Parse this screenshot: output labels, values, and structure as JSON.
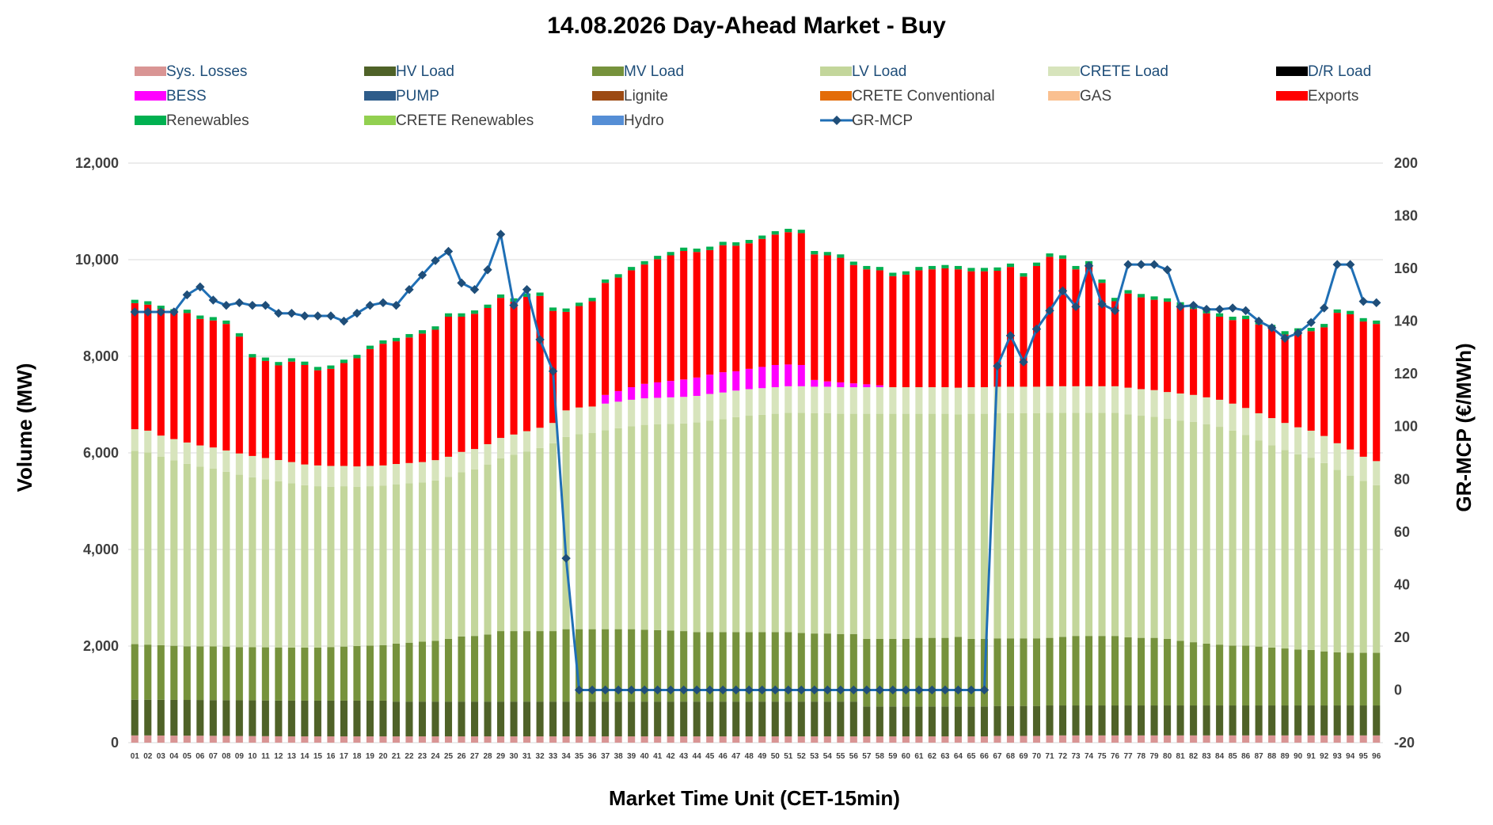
{
  "chart_data": {
    "type": "bar",
    "stacked": true,
    "title": "14.08.2026  Day-Ahead Market - Buy",
    "xlabel": "Market Time Unit (CET-15min)",
    "ylabel": "Volume (MW)",
    "y2label": "GR-MCP (€/MWh)",
    "ylim": [
      0,
      12000
    ],
    "y2lim": [
      -20,
      200
    ],
    "yticks": [
      "0",
      "2,000",
      "4,000",
      "6,000",
      "8,000",
      "10,000",
      "12,000"
    ],
    "y2ticks": [
      "-20",
      "0",
      "20",
      "40",
      "60",
      "80",
      "100",
      "120",
      "140",
      "160",
      "180",
      "200"
    ],
    "grid": true,
    "legend_position": "top",
    "categories": [
      "01",
      "02",
      "03",
      "04",
      "05",
      "06",
      "07",
      "08",
      "09",
      "10",
      "11",
      "12",
      "13",
      "14",
      "15",
      "16",
      "17",
      "18",
      "19",
      "20",
      "21",
      "22",
      "23",
      "24",
      "25",
      "26",
      "27",
      "28",
      "29",
      "30",
      "31",
      "32",
      "33",
      "34",
      "35",
      "36",
      "37",
      "38",
      "39",
      "40",
      "41",
      "42",
      "43",
      "44",
      "45",
      "46",
      "47",
      "48",
      "49",
      "50",
      "51",
      "52",
      "53",
      "54",
      "55",
      "56",
      "57",
      "58",
      "59",
      "60",
      "61",
      "62",
      "63",
      "64",
      "65",
      "66",
      "67",
      "68",
      "69",
      "70",
      "71",
      "72",
      "73",
      "74",
      "75",
      "76",
      "77",
      "78",
      "79",
      "80",
      "81",
      "82",
      "83",
      "84",
      "85",
      "86",
      "87",
      "88",
      "89",
      "90",
      "91",
      "92",
      "93",
      "94",
      "95",
      "96"
    ],
    "legend": [
      {
        "name": "Sys. Losses",
        "color": "#d99594",
        "kind": "bar"
      },
      {
        "name": "HV Load",
        "color": "#4f6228",
        "kind": "bar"
      },
      {
        "name": "MV Load",
        "color": "#76923c",
        "kind": "bar"
      },
      {
        "name": "LV Load",
        "color": "#c3d69b",
        "kind": "bar"
      },
      {
        "name": "CRETE Load",
        "color": "#d7e4bc",
        "kind": "bar"
      },
      {
        "name": "D/R Load",
        "color": "#000000",
        "kind": "bar"
      },
      {
        "name": "BESS",
        "color": "#ff00ff",
        "kind": "bar"
      },
      {
        "name": "PUMP",
        "color": "#2e5c8a",
        "kind": "bar"
      },
      {
        "name": "Lignite",
        "color": "#9c4a13",
        "kind": "bar"
      },
      {
        "name": "CRETE Conventional",
        "color": "#e36c09",
        "kind": "bar"
      },
      {
        "name": "GAS",
        "color": "#fac090",
        "kind": "bar"
      },
      {
        "name": "Exports",
        "color": "#ff0000",
        "kind": "bar"
      },
      {
        "name": "Renewables",
        "color": "#00b050",
        "kind": "bar"
      },
      {
        "name": "CRETE Renewables",
        "color": "#92d050",
        "kind": "bar"
      },
      {
        "name": "Hydro",
        "color": "#558ed5",
        "kind": "bar"
      },
      {
        "name": "GR-MCP",
        "color": "#1f6fb5",
        "kind": "line"
      }
    ],
    "series": [
      {
        "name": "Sys. Losses",
        "axis": "y",
        "values": [
          150,
          150,
          148,
          146,
          145,
          144,
          142,
          140,
          138,
          136,
          134,
          132,
          130,
          130,
          130,
          130,
          130,
          130,
          130,
          130,
          130,
          130,
          130,
          130,
          130,
          130,
          130,
          130,
          130,
          130,
          130,
          130,
          130,
          130,
          130,
          130,
          130,
          130,
          130,
          130,
          130,
          130,
          130,
          130,
          130,
          130,
          130,
          130,
          130,
          130,
          130,
          130,
          130,
          130,
          130,
          130,
          130,
          130,
          130,
          130,
          130,
          130,
          130,
          130,
          130,
          130,
          140,
          140,
          140,
          140,
          150,
          150,
          150,
          150,
          150,
          150,
          150,
          150,
          150,
          150,
          150,
          150,
          150,
          150,
          150,
          150,
          150,
          150,
          150,
          150,
          150,
          150,
          150,
          150,
          150,
          150
        ]
      },
      {
        "name": "HV Load",
        "axis": "y",
        "values": [
          740,
          740,
          740,
          740,
          740,
          740,
          740,
          740,
          740,
          740,
          740,
          740,
          740,
          740,
          740,
          740,
          740,
          740,
          740,
          740,
          720,
          720,
          720,
          720,
          720,
          720,
          720,
          720,
          720,
          720,
          720,
          720,
          720,
          720,
          720,
          720,
          720,
          720,
          720,
          720,
          720,
          720,
          720,
          720,
          720,
          720,
          720,
          720,
          720,
          720,
          720,
          720,
          720,
          720,
          720,
          720,
          620,
          620,
          620,
          620,
          620,
          620,
          620,
          620,
          620,
          620,
          620,
          620,
          620,
          620,
          620,
          620,
          620,
          620,
          620,
          620,
          620,
          620,
          620,
          620,
          620,
          620,
          620,
          620,
          620,
          620,
          620,
          620,
          620,
          620,
          620,
          620,
          620,
          620,
          620,
          620
        ]
      },
      {
        "name": "MV Load",
        "axis": "y",
        "values": [
          1150,
          1140,
          1130,
          1120,
          1110,
          1110,
          1110,
          1110,
          1100,
          1100,
          1100,
          1100,
          1100,
          1100,
          1100,
          1110,
          1120,
          1130,
          1140,
          1150,
          1200,
          1220,
          1240,
          1260,
          1300,
          1350,
          1360,
          1390,
          1460,
          1460,
          1460,
          1460,
          1460,
          1500,
          1500,
          1500,
          1500,
          1500,
          1500,
          1490,
          1480,
          1470,
          1460,
          1440,
          1440,
          1440,
          1440,
          1440,
          1440,
          1440,
          1440,
          1420,
          1410,
          1410,
          1400,
          1400,
          1400,
          1400,
          1400,
          1400,
          1420,
          1420,
          1420,
          1440,
          1400,
          1400,
          1400,
          1400,
          1400,
          1400,
          1400,
          1420,
          1440,
          1440,
          1440,
          1440,
          1410,
          1400,
          1400,
          1380,
          1340,
          1310,
          1280,
          1260,
          1240,
          1240,
          1220,
          1200,
          1180,
          1160,
          1150,
          1120,
          1100,
          1090,
          1090,
          1090
        ]
      },
      {
        "name": "LV Load",
        "axis": "y",
        "values": [
          4000,
          3980,
          3900,
          3840,
          3780,
          3720,
          3680,
          3620,
          3570,
          3520,
          3480,
          3440,
          3400,
          3360,
          3340,
          3320,
          3320,
          3300,
          3300,
          3300,
          3300,
          3300,
          3300,
          3320,
          3350,
          3400,
          3450,
          3520,
          3580,
          3650,
          3720,
          3790,
          3890,
          3980,
          4040,
          4060,
          4120,
          4160,
          4200,
          4240,
          4260,
          4280,
          4300,
          4340,
          4380,
          4410,
          4450,
          4480,
          4500,
          4520,
          4540,
          4560,
          4560,
          4560,
          4560,
          4560,
          4660,
          4660,
          4660,
          4660,
          4640,
          4640,
          4640,
          4610,
          4660,
          4660,
          4660,
          4660,
          4660,
          4660,
          4660,
          4640,
          4620,
          4620,
          4620,
          4620,
          4620,
          4600,
          4580,
          4560,
          4560,
          4560,
          4540,
          4510,
          4450,
          4360,
          4270,
          4190,
          4110,
          4040,
          3980,
          3900,
          3780,
          3670,
          3560,
          3470
        ]
      },
      {
        "name": "CRETE Load",
        "axis": "y",
        "values": [
          450,
          450,
          440,
          440,
          440,
          440,
          440,
          440,
          440,
          440,
          440,
          440,
          440,
          430,
          430,
          430,
          420,
          420,
          420,
          420,
          420,
          420,
          420,
          420,
          420,
          420,
          420,
          420,
          420,
          420,
          420,
          420,
          420,
          550,
          550,
          550,
          550,
          550,
          550,
          550,
          550,
          550,
          550,
          550,
          550,
          550,
          550,
          550,
          550,
          550,
          550,
          550,
          550,
          550,
          550,
          550,
          550,
          550,
          550,
          550,
          550,
          550,
          550,
          550,
          550,
          550,
          550,
          550,
          550,
          550,
          550,
          550,
          550,
          550,
          550,
          550,
          550,
          550,
          550,
          550,
          560,
          560,
          560,
          560,
          560,
          560,
          560,
          560,
          560,
          560,
          560,
          560,
          550,
          540,
          500,
          500
        ]
      },
      {
        "name": "D/R Load",
        "axis": "y",
        "values": [
          0,
          0,
          0,
          0,
          0,
          0,
          0,
          0,
          0,
          0,
          0,
          0,
          0,
          0,
          0,
          0,
          0,
          0,
          0,
          0,
          0,
          0,
          0,
          0,
          0,
          0,
          0,
          0,
          0,
          0,
          0,
          0,
          0,
          0,
          0,
          0,
          0,
          0,
          0,
          0,
          0,
          0,
          0,
          0,
          0,
          0,
          0,
          0,
          0,
          0,
          0,
          0,
          0,
          0,
          0,
          0,
          0,
          0,
          0,
          0,
          0,
          0,
          0,
          0,
          0,
          0,
          0,
          0,
          0,
          0,
          0,
          0,
          0,
          0,
          0,
          0,
          0,
          0,
          0,
          0,
          0,
          0,
          0,
          0,
          0,
          0,
          0,
          0,
          0,
          0,
          0,
          0,
          0,
          0,
          0,
          0
        ]
      },
      {
        "name": "BESS",
        "axis": "y",
        "values": [
          0,
          0,
          0,
          0,
          0,
          0,
          0,
          0,
          0,
          0,
          0,
          0,
          0,
          0,
          0,
          0,
          0,
          0,
          0,
          0,
          0,
          0,
          0,
          0,
          0,
          0,
          0,
          0,
          0,
          0,
          0,
          0,
          0,
          0,
          0,
          0,
          180,
          220,
          260,
          300,
          320,
          340,
          360,
          380,
          400,
          420,
          400,
          420,
          440,
          460,
          450,
          440,
          140,
          110,
          100,
          80,
          60,
          40,
          0,
          0,
          0,
          0,
          0,
          0,
          0,
          0,
          0,
          0,
          0,
          0,
          0,
          0,
          0,
          0,
          0,
          0,
          0,
          0,
          0,
          0,
          0,
          0,
          0,
          0,
          0,
          0,
          0,
          0,
          0,
          0,
          0,
          0,
          0,
          0,
          0,
          0
        ]
      },
      {
        "name": "Exports",
        "axis": "y",
        "values": [
          2610,
          2610,
          2620,
          2620,
          2680,
          2620,
          2630,
          2620,
          2420,
          2040,
          2010,
          1960,
          2080,
          2060,
          1970,
          2010,
          2130,
          2240,
          2420,
          2520,
          2540,
          2600,
          2660,
          2700,
          2900,
          2800,
          2800,
          2820,
          2900,
          2750,
          2780,
          2730,
          2320,
          2040,
          2100,
          2180,
          2320,
          2350,
          2420,
          2470,
          2550,
          2600,
          2660,
          2600,
          2580,
          2630,
          2600,
          2600,
          2650,
          2700,
          2740,
          2730,
          2600,
          2610,
          2580,
          2450,
          2380,
          2380,
          2300,
          2330,
          2420,
          2440,
          2460,
          2450,
          2400,
          2400,
          2400,
          2480,
          2280,
          2500,
          2680,
          2640,
          2420,
          2520,
          2140,
          1760,
          1950,
          1900,
          1870,
          1870,
          1820,
          1780,
          1740,
          1720,
          1730,
          1840,
          1840,
          1860,
          1830,
          1980,
          2060,
          2250,
          2700,
          2800,
          2800,
          2840
        ]
      },
      {
        "name": "Renewables",
        "axis": "y",
        "values": [
          70,
          70,
          70,
          70,
          70,
          70,
          70,
          70,
          70,
          70,
          70,
          70,
          70,
          70,
          70,
          70,
          70,
          70,
          70,
          70,
          70,
          70,
          70,
          70,
          70,
          70,
          70,
          70,
          70,
          70,
          70,
          70,
          70,
          70,
          70,
          70,
          70,
          70,
          70,
          70,
          70,
          70,
          70,
          70,
          70,
          70,
          70,
          70,
          70,
          70,
          70,
          70,
          70,
          70,
          70,
          70,
          70,
          70,
          70,
          70,
          70,
          70,
          70,
          70,
          70,
          70,
          70,
          70,
          70,
          70,
          70,
          70,
          70,
          70,
          70,
          70,
          70,
          70,
          70,
          70,
          70,
          70,
          70,
          70,
          70,
          70,
          70,
          70,
          70,
          70,
          70,
          70,
          70,
          70,
          70,
          70
        ]
      },
      {
        "name": "GR-MCP",
        "axis": "y2",
        "values": [
          143.5,
          143.5,
          143.5,
          143.5,
          150,
          153,
          148,
          146,
          147,
          146,
          146,
          143,
          143,
          142,
          142,
          142,
          140,
          143,
          146,
          147,
          146,
          152,
          157.5,
          163,
          166.5,
          154.5,
          152,
          159.5,
          173,
          146,
          152,
          133,
          121,
          50,
          0,
          0,
          0,
          0,
          0,
          0,
          0,
          0,
          0,
          0,
          0,
          0,
          0,
          0,
          0,
          0,
          0,
          0,
          0,
          0,
          0,
          0,
          0,
          0,
          0,
          0,
          0,
          0,
          0,
          0,
          0,
          0,
          123,
          134.5,
          124.5,
          137,
          144,
          151.5,
          145.5,
          161,
          146.5,
          144,
          161.5,
          161.5,
          161.5,
          159.5,
          145.5,
          146,
          144.5,
          144.5,
          145,
          144,
          140,
          137.5,
          133.5,
          135.5,
          139.5,
          145,
          161.5,
          161.5,
          147.5,
          147
        ]
      }
    ]
  }
}
